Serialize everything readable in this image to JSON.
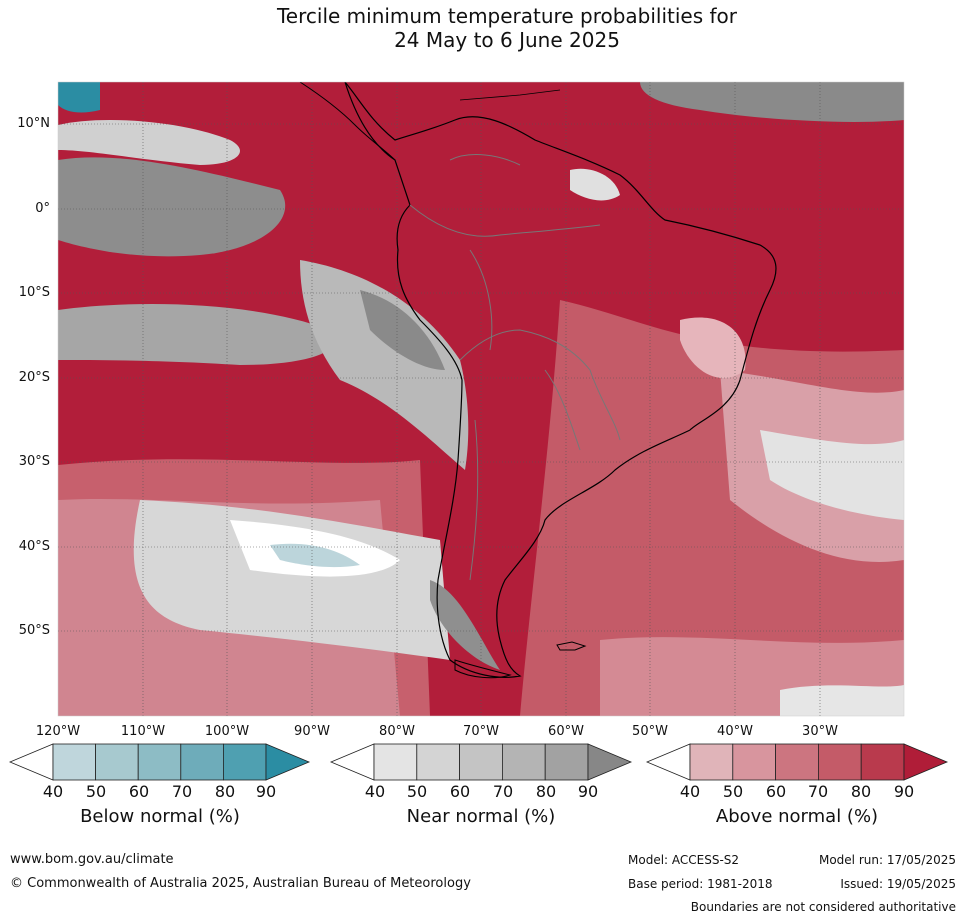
{
  "title_line1": "Tercile minimum temperature probabilities for",
  "title_line2": "24 May to 6 June 2025",
  "map": {
    "lat_labels": [
      "10°N",
      "0°",
      "10°S",
      "20°S",
      "30°S",
      "40°S",
      "50°S"
    ],
    "lon_labels": [
      "120°W",
      "110°W",
      "100°W",
      "90°W",
      "80°W",
      "70°W",
      "60°W",
      "50°W",
      "40°W",
      "30°W"
    ]
  },
  "legend": {
    "below": {
      "label": "Below normal (%)",
      "ticks": [
        "40",
        "50",
        "60",
        "70",
        "80",
        "90"
      ],
      "colors": [
        "#ffffff",
        "#bfd6dc",
        "#a7c9cf",
        "#8dbcc5",
        "#6eacba",
        "#4fa0b1",
        "#2b8da3"
      ]
    },
    "near": {
      "label": "Near normal (%)",
      "ticks": [
        "40",
        "50",
        "60",
        "70",
        "80",
        "90"
      ],
      "colors": [
        "#ffffff",
        "#e4e4e4",
        "#d4d4d4",
        "#c4c4c4",
        "#b4b4b4",
        "#a2a2a2",
        "#878787"
      ]
    },
    "above": {
      "label": "Above normal (%)",
      "ticks": [
        "40",
        "50",
        "60",
        "70",
        "80",
        "90"
      ],
      "colors": [
        "#ffffff",
        "#e0b4b9",
        "#d8959e",
        "#cc7580",
        "#c45b68",
        "#b93a4d",
        "#b01d38"
      ]
    }
  },
  "footer": {
    "website": "www.bom.gov.au/climate",
    "copyright": "© Commonwealth of Australia 2025, Australian Bureau of Meteorology",
    "model": "Model: ACCESS-S2",
    "base_period": "Base period: 1981-2018",
    "model_run": "Model run: 17/05/2025",
    "issued": "Issued: 19/05/2025",
    "disclaimer": "Boundaries are not considered authoritative"
  }
}
